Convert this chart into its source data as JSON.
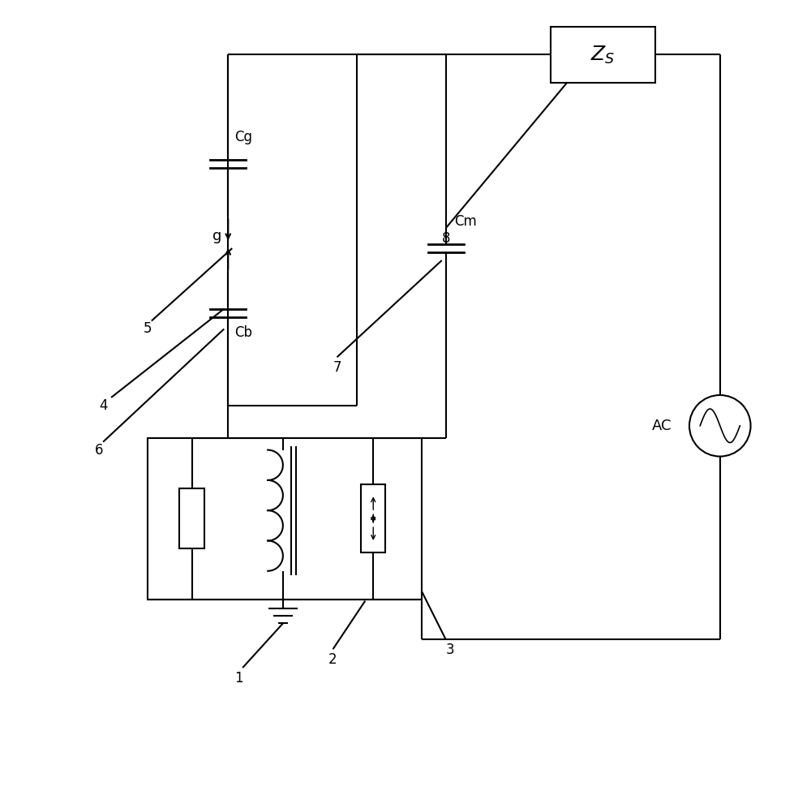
{
  "bg_color": "#ffffff",
  "line_color": "#000000",
  "lw": 1.5,
  "lw_thick": 2.0,
  "fig_width": 10.0,
  "fig_height": 9.75,
  "xlim": [
    0,
    10
  ],
  "ylim": [
    0,
    9.75
  ]
}
